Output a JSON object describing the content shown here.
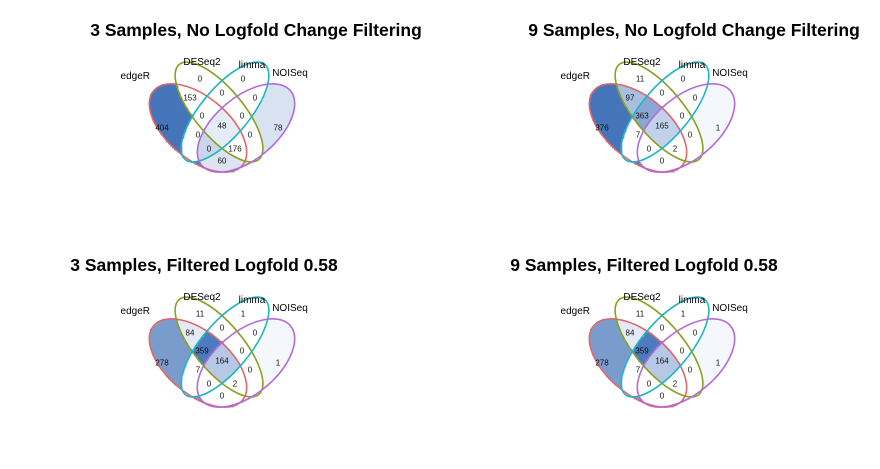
{
  "sets": [
    "edgeR",
    "DESeq2",
    "limma",
    "NOISeq"
  ],
  "set_colors": {
    "edgeR": "#e0676b",
    "DESeq2": "#8aa024",
    "limma": "#1fb6c2",
    "NOISeq": "#b46bd9"
  },
  "panels": [
    {
      "title": "3 Samples, No Logfold Change Filtering",
      "regions": {
        "A": "404",
        "B": "0",
        "C": "0",
        "D": "78",
        "AB": "153",
        "AC": "0",
        "AD": "60",
        "BC": "0",
        "BD": "0",
        "CD": "0",
        "ABC": "0",
        "ABD": "0",
        "ACD": "176",
        "BCD": "0",
        "ABCD": "48"
      },
      "shading": {
        "A": "#4475ba",
        "D": "#d9e2f0",
        "AB": "#ffffff",
        "AD": "#dce4f2",
        "ACD": "#c9d6eb",
        "ABCD": "#e6ecf6"
      }
    },
    {
      "title": "9 Samples, No Logfold Change Filtering",
      "regions": {
        "A": "376",
        "B": "11",
        "C": "0",
        "D": "1",
        "AB": "97",
        "AC": "7",
        "AD": "0",
        "BC": "0",
        "BD": "0",
        "CD": "0",
        "ABC": "363",
        "ABD": "0",
        "ACD": "2",
        "BCD": "0",
        "ABCD": "165"
      },
      "shading": {
        "A": "#4475ba",
        "D": "#f4f7fc",
        "AB": "#a9bfe0",
        "ABC": "#8aa8d6",
        "ABCD": "#c3d2ec"
      }
    },
    {
      "title": "3 Samples, Filtered Logfold 0.58",
      "regions": {
        "A": "278",
        "B": "11",
        "C": "1",
        "D": "1",
        "AB": "84",
        "AC": "7",
        "AD": "0",
        "BC": "0",
        "BD": "0",
        "CD": "0",
        "ABC": "359",
        "ABD": "0",
        "ACD": "2",
        "BCD": "0",
        "ABCD": "164"
      },
      "shading": {
        "A": "#7a9ccd",
        "D": "#f4f7fc",
        "AB": "#e3eaf5",
        "ABC": "#4e7bbf",
        "ABCD": "#b6c8e6"
      }
    },
    {
      "title": "9 Samples, Filtered Logfold 0.58",
      "regions": {
        "A": "278",
        "B": "11",
        "C": "1",
        "D": "1",
        "AB": "84",
        "AC": "7",
        "AD": "0",
        "BC": "0",
        "BD": "0",
        "CD": "0",
        "ABC": "359",
        "ABD": "0",
        "ACD": "2",
        "BCD": "0",
        "ABCD": "164"
      },
      "shading": {
        "A": "#7a9ccd",
        "D": "#f4f7fc",
        "AB": "#e3eaf5",
        "ABC": "#4e7bbf",
        "ABCD": "#b6c8e6"
      }
    }
  ]
}
